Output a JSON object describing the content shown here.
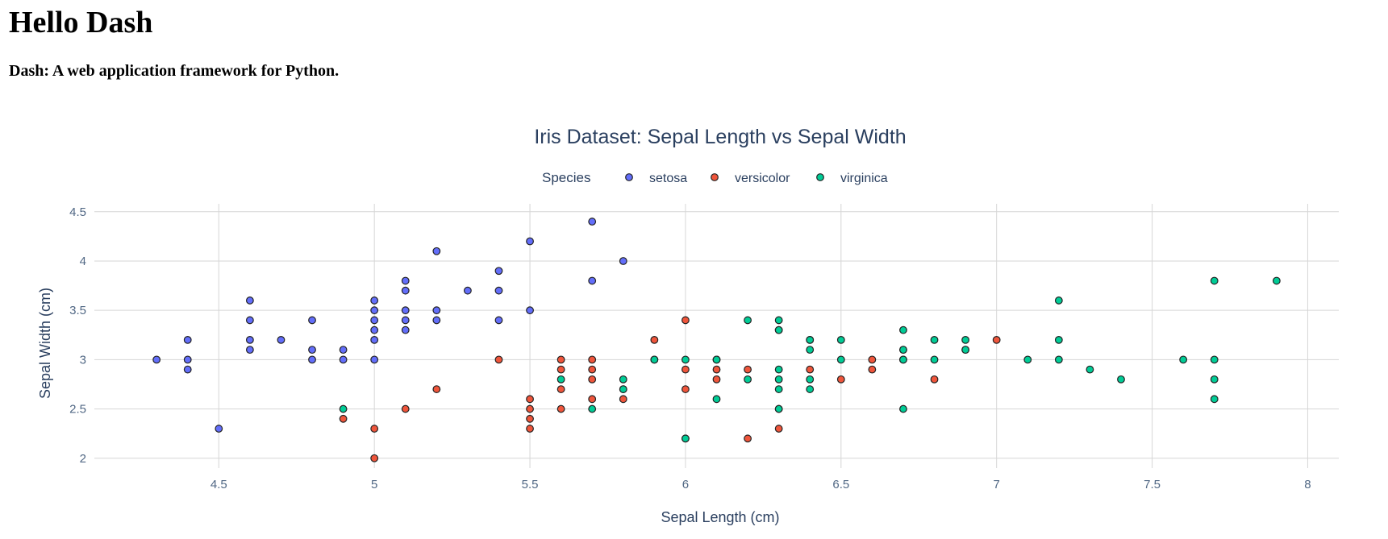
{
  "header": {
    "title": "Hello Dash",
    "subtitle": "Dash: A web application framework for Python."
  },
  "chart_data": {
    "type": "scatter",
    "title": "Iris Dataset: Sepal Length vs Sepal Width",
    "xlabel": "Sepal Length (cm)",
    "ylabel": "Sepal Width (cm)",
    "xlim": [
      4.1,
      8.1
    ],
    "ylim": [
      1.9,
      4.58
    ],
    "xticks": [
      4.5,
      5,
      5.5,
      6,
      6.5,
      7,
      7.5,
      8
    ],
    "xtick_labels": [
      "4.5",
      "5",
      "5.5",
      "6",
      "6.5",
      "7",
      "7.5",
      "8"
    ],
    "yticks": [
      2,
      2.5,
      3,
      3.5,
      4,
      4.5
    ],
    "ytick_labels": [
      "2",
      "2.5",
      "3",
      "3.5",
      "4",
      "4.5"
    ],
    "grid": true,
    "legend_title": "Species",
    "legend_position": "top-center",
    "series": [
      {
        "name": "setosa",
        "color": "#636efa",
        "points": [
          [
            4.3,
            3.0
          ],
          [
            4.4,
            3.2
          ],
          [
            4.4,
            3.0
          ],
          [
            4.4,
            2.9
          ],
          [
            4.5,
            2.3
          ],
          [
            4.6,
            3.6
          ],
          [
            4.6,
            3.4
          ],
          [
            4.6,
            3.2
          ],
          [
            4.6,
            3.1
          ],
          [
            4.7,
            3.2
          ],
          [
            4.8,
            3.4
          ],
          [
            4.8,
            3.1
          ],
          [
            4.8,
            3.0
          ],
          [
            4.9,
            3.1
          ],
          [
            4.9,
            3.0
          ],
          [
            5.0,
            3.6
          ],
          [
            5.0,
            3.5
          ],
          [
            5.0,
            3.4
          ],
          [
            5.0,
            3.3
          ],
          [
            5.0,
            3.2
          ],
          [
            5.0,
            3.0
          ],
          [
            5.1,
            3.8
          ],
          [
            5.1,
            3.7
          ],
          [
            5.1,
            3.5
          ],
          [
            5.1,
            3.4
          ],
          [
            5.1,
            3.3
          ],
          [
            5.2,
            4.1
          ],
          [
            5.2,
            3.5
          ],
          [
            5.2,
            3.4
          ],
          [
            5.3,
            3.7
          ],
          [
            5.4,
            3.9
          ],
          [
            5.4,
            3.7
          ],
          [
            5.4,
            3.4
          ],
          [
            5.5,
            4.2
          ],
          [
            5.5,
            3.5
          ],
          [
            5.7,
            4.4
          ],
          [
            5.7,
            3.8
          ],
          [
            5.8,
            4.0
          ]
        ]
      },
      {
        "name": "versicolor",
        "color": "#ef553b",
        "points": [
          [
            4.9,
            2.4
          ],
          [
            5.0,
            2.3
          ],
          [
            5.0,
            2.0
          ],
          [
            5.1,
            2.5
          ],
          [
            5.2,
            2.7
          ],
          [
            5.4,
            3.0
          ],
          [
            5.5,
            2.6
          ],
          [
            5.5,
            2.5
          ],
          [
            5.5,
            2.4
          ],
          [
            5.5,
            2.3
          ],
          [
            5.6,
            3.0
          ],
          [
            5.6,
            2.9
          ],
          [
            5.6,
            2.7
          ],
          [
            5.6,
            2.5
          ],
          [
            5.7,
            3.0
          ],
          [
            5.7,
            2.9
          ],
          [
            5.7,
            2.8
          ],
          [
            5.7,
            2.6
          ],
          [
            5.8,
            2.7
          ],
          [
            5.8,
            2.6
          ],
          [
            5.9,
            3.2
          ],
          [
            5.9,
            3.0
          ],
          [
            6.0,
            3.4
          ],
          [
            6.0,
            2.9
          ],
          [
            6.0,
            2.7
          ],
          [
            6.0,
            2.2
          ],
          [
            6.1,
            3.0
          ],
          [
            6.1,
            2.9
          ],
          [
            6.1,
            2.8
          ],
          [
            6.2,
            2.9
          ],
          [
            6.2,
            2.2
          ],
          [
            6.3,
            3.3
          ],
          [
            6.3,
            2.5
          ],
          [
            6.3,
            2.3
          ],
          [
            6.4,
            3.2
          ],
          [
            6.4,
            2.9
          ],
          [
            6.5,
            2.8
          ],
          [
            6.6,
            3.0
          ],
          [
            6.6,
            2.9
          ],
          [
            6.7,
            3.1
          ],
          [
            6.7,
            3.0
          ],
          [
            6.8,
            2.8
          ],
          [
            6.9,
            3.1
          ],
          [
            7.0,
            3.2
          ]
        ]
      },
      {
        "name": "virginica",
        "color": "#00cc96",
        "points": [
          [
            4.9,
            2.5
          ],
          [
            5.6,
            2.8
          ],
          [
            5.7,
            2.5
          ],
          [
            5.8,
            2.8
          ],
          [
            5.8,
            2.7
          ],
          [
            5.9,
            3.0
          ],
          [
            6.0,
            3.0
          ],
          [
            6.0,
            2.2
          ],
          [
            6.1,
            3.0
          ],
          [
            6.1,
            2.6
          ],
          [
            6.2,
            3.4
          ],
          [
            6.2,
            2.8
          ],
          [
            6.3,
            3.4
          ],
          [
            6.3,
            3.3
          ],
          [
            6.3,
            2.9
          ],
          [
            6.3,
            2.8
          ],
          [
            6.3,
            2.7
          ],
          [
            6.3,
            2.5
          ],
          [
            6.4,
            3.2
          ],
          [
            6.4,
            3.1
          ],
          [
            6.4,
            2.8
          ],
          [
            6.4,
            2.7
          ],
          [
            6.5,
            3.2
          ],
          [
            6.5,
            3.0
          ],
          [
            6.7,
            3.3
          ],
          [
            6.7,
            3.1
          ],
          [
            6.7,
            3.0
          ],
          [
            6.7,
            2.5
          ],
          [
            6.8,
            3.2
          ],
          [
            6.8,
            3.0
          ],
          [
            6.9,
            3.2
          ],
          [
            6.9,
            3.1
          ],
          [
            7.1,
            3.0
          ],
          [
            7.2,
            3.6
          ],
          [
            7.2,
            3.2
          ],
          [
            7.2,
            3.0
          ],
          [
            7.3,
            2.9
          ],
          [
            7.4,
            2.8
          ],
          [
            7.6,
            3.0
          ],
          [
            7.7,
            3.8
          ],
          [
            7.7,
            3.0
          ],
          [
            7.7,
            2.8
          ],
          [
            7.7,
            2.6
          ],
          [
            7.9,
            3.8
          ]
        ]
      }
    ]
  }
}
